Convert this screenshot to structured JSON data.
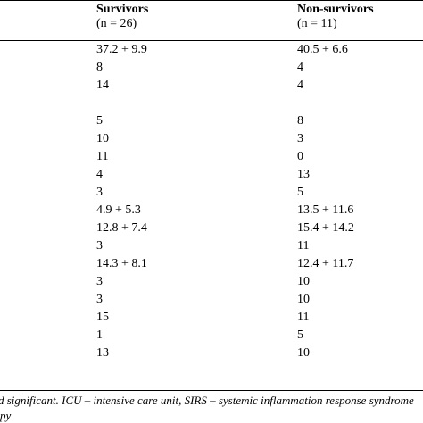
{
  "header": {
    "survivors_title": "Survivors",
    "survivors_n": "(n = 26)",
    "nonsurvivors_title": "Non-survivors",
    "nonsurvivors_n": "(n = 11)"
  },
  "rows": [
    {
      "s": "37.2 + 9.9",
      "n": "40.5 + 6.6"
    },
    {
      "s": "8",
      "n": "4"
    },
    {
      "s": "14",
      "n": "4"
    },
    {
      "s": "",
      "n": ""
    },
    {
      "s": "5",
      "n": "8"
    },
    {
      "s": "10",
      "n": "3"
    },
    {
      "s": "11",
      "n": "0"
    },
    {
      "s": "4",
      "n": "13"
    },
    {
      "s": "3",
      "n": "5"
    },
    {
      "s": "4.9 + 5.3",
      "n": "13.5 + 11.6"
    },
    {
      "s": "12.8 + 7.4",
      "n": "15.4 + 14.2"
    },
    {
      "s": "3",
      "n": "11"
    },
    {
      "s": "14.3 + 8.1",
      "n": "12.4 + 11.7"
    },
    {
      "s": "3",
      "n": "10"
    },
    {
      "s": "3",
      "n": "10"
    },
    {
      "s": "15",
      "n": "11"
    },
    {
      "s": "1",
      "n": "5"
    },
    {
      "s": "13",
      "n": "10"
    }
  ],
  "footnote": {
    "line1": "d significant. ICU – intensive care unit, SIRS – systemic inflammation response syndrome",
    "line2": "py"
  }
}
